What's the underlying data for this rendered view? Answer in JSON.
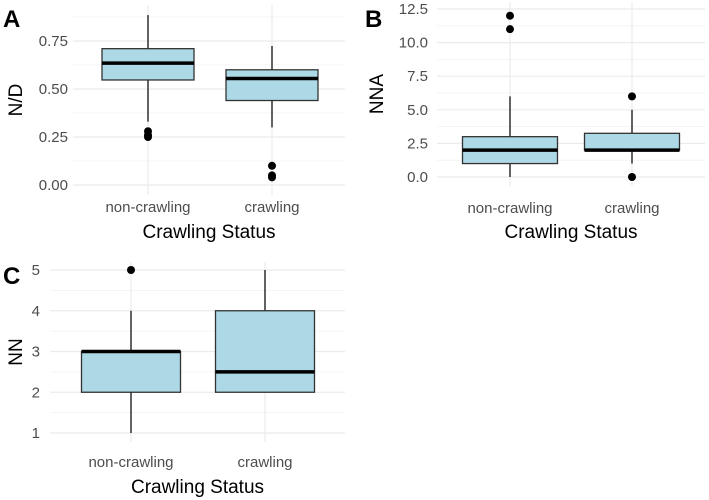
{
  "chart_data": [
    {
      "type": "box",
      "panel_label": "A",
      "xlabel": "Crawling Status",
      "ylabel": "N/D",
      "categories": [
        "non-crawling",
        "crawling"
      ],
      "yticks": [
        0.0,
        0.25,
        0.5,
        0.75
      ],
      "ytick_labels": [
        "0.00",
        "0.25",
        "0.50",
        "0.75"
      ],
      "ylim": [
        -0.02,
        0.92
      ],
      "series": [
        {
          "name": "non-crawling",
          "min": 0.33,
          "q1": 0.547,
          "median": 0.635,
          "q3": 0.71,
          "max": 0.885,
          "outliers": [
            0.28,
            0.26,
            0.25
          ]
        },
        {
          "name": "crawling",
          "min": 0.3,
          "q1": 0.44,
          "median": 0.555,
          "q3": 0.6,
          "max": 0.724,
          "outliers": [
            0.1,
            0.05,
            0.04
          ]
        }
      ],
      "fill_color": "#add8e6",
      "grid": true
    },
    {
      "type": "box",
      "panel_label": "B",
      "xlabel": "Crawling Status",
      "ylabel": "NNA",
      "categories": [
        "non-crawling",
        "crawling"
      ],
      "yticks": [
        0.0,
        2.5,
        5.0,
        7.5,
        10.0,
        12.5
      ],
      "ytick_labels": [
        "0.0",
        "2.5",
        "5.0",
        "7.5",
        "10.0",
        "12.5"
      ],
      "ylim": [
        -0.6,
        12.6
      ],
      "series": [
        {
          "name": "non-crawling",
          "min": 0,
          "q1": 1,
          "median": 2,
          "q3": 3,
          "max": 6,
          "outliers": [
            11,
            12
          ]
        },
        {
          "name": "crawling",
          "min": 1,
          "q1": 2,
          "median": 2,
          "q3": 3.25,
          "max": 5,
          "outliers": [
            6,
            0
          ]
        }
      ],
      "fill_color": "#add8e6",
      "grid": true
    },
    {
      "type": "box",
      "panel_label": "C",
      "xlabel": "Crawling Status",
      "ylabel": "NN",
      "categories": [
        "non-crawling",
        "crawling"
      ],
      "yticks": [
        1,
        2,
        3,
        4,
        5
      ],
      "ytick_labels": [
        "1",
        "2",
        "3",
        "4",
        "5"
      ],
      "ylim": [
        0.8,
        5.2
      ],
      "series": [
        {
          "name": "non-crawling",
          "min": 1,
          "q1": 2,
          "median": 3,
          "q3": 3,
          "max": 4,
          "outliers": [
            5
          ]
        },
        {
          "name": "crawling",
          "min": 2,
          "q1": 2,
          "median": 2.5,
          "q3": 4,
          "max": 5,
          "outliers": []
        }
      ],
      "fill_color": "#add8e6",
      "grid": true
    }
  ]
}
